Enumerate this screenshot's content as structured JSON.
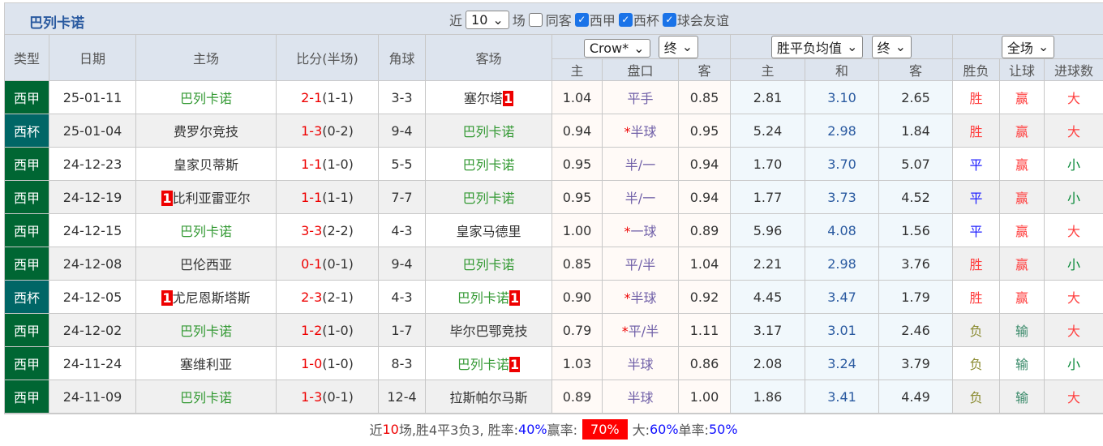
{
  "header": {
    "title": "巴列卡诺",
    "recent_label": "近",
    "recent_value": "10",
    "games_label": "场",
    "same_label": "同客",
    "filters": [
      {
        "label": "西甲",
        "checked": true
      },
      {
        "label": "西杯",
        "checked": true
      },
      {
        "label": "球会友谊",
        "checked": true
      }
    ]
  },
  "columns": {
    "type": "类型",
    "date": "日期",
    "home": "主场",
    "score": "比分(半场)",
    "corner": "角球",
    "away": "客场",
    "company": "Crow*",
    "final1": "终",
    "avg": "胜平负均值",
    "final2": "终",
    "scope": "全场",
    "h_home": "主",
    "h_line": "盘口",
    "h_away": "客",
    "e_home": "主",
    "e_draw": "和",
    "e_away": "客",
    "res": "胜负",
    "hres": "让球",
    "ou": "进球数"
  },
  "colors": {
    "league_la_liga": "#006633",
    "league_cup": "#006666",
    "accent": "#2a5aa0",
    "win": "#ff4040",
    "rate_badge": "#ff0000"
  },
  "rows": [
    {
      "type": "西甲",
      "date": "25-01-11",
      "home": "巴列卡诺",
      "home_badge": "",
      "away": "塞尔塔",
      "away_badge": "1",
      "ft": "2-1",
      "ht": "(1-1)",
      "corner": "3-3",
      "oh": "1.04",
      "line": "平手",
      "star": "",
      "oa": "0.85",
      "eh": "2.81",
      "ed": "3.10",
      "ea": "2.65",
      "res": "胜",
      "hres": "赢",
      "ou": "大"
    },
    {
      "type": "西杯",
      "date": "25-01-04",
      "home": "费罗尔竞技",
      "home_badge": "",
      "away": "巴列卡诺",
      "away_badge": "",
      "ft": "1-3",
      "ht": "(0-2)",
      "corner": "9-4",
      "oh": "0.94",
      "line": "半球",
      "star": "*",
      "oa": "0.95",
      "eh": "5.24",
      "ed": "2.98",
      "ea": "1.84",
      "res": "胜",
      "hres": "赢",
      "ou": "大"
    },
    {
      "type": "西甲",
      "date": "24-12-23",
      "home": "皇家贝蒂斯",
      "home_badge": "",
      "away": "巴列卡诺",
      "away_badge": "",
      "ft": "1-1",
      "ht": "(1-0)",
      "corner": "5-5",
      "oh": "0.95",
      "line": "半/一",
      "star": "",
      "oa": "0.94",
      "eh": "1.70",
      "ed": "3.70",
      "ea": "5.07",
      "res": "平",
      "hres": "赢",
      "ou": "小"
    },
    {
      "type": "西甲",
      "date": "24-12-19",
      "home": "比利亚雷亚尔",
      "home_badge": "1",
      "away": "巴列卡诺",
      "away_badge": "",
      "ft": "1-1",
      "ht": "(1-1)",
      "corner": "7-7",
      "oh": "0.95",
      "line": "半/一",
      "star": "",
      "oa": "0.94",
      "eh": "1.77",
      "ed": "3.73",
      "ea": "4.52",
      "res": "平",
      "hres": "赢",
      "ou": "小"
    },
    {
      "type": "西甲",
      "date": "24-12-15",
      "home": "巴列卡诺",
      "home_badge": "",
      "away": "皇家马德里",
      "away_badge": "",
      "ft": "3-3",
      "ht": "(2-2)",
      "corner": "4-3",
      "oh": "1.00",
      "line": "一球",
      "star": "*",
      "oa": "0.89",
      "eh": "5.96",
      "ed": "4.08",
      "ea": "1.56",
      "res": "平",
      "hres": "赢",
      "ou": "大"
    },
    {
      "type": "西甲",
      "date": "24-12-08",
      "home": "巴伦西亚",
      "home_badge": "",
      "away": "巴列卡诺",
      "away_badge": "",
      "ft": "0-1",
      "ht": "(0-1)",
      "corner": "9-4",
      "oh": "0.85",
      "line": "平/半",
      "star": "",
      "oa": "1.04",
      "eh": "2.21",
      "ed": "2.98",
      "ea": "3.76",
      "res": "胜",
      "hres": "赢",
      "ou": "小"
    },
    {
      "type": "西杯",
      "date": "24-12-05",
      "home": "尤尼恩斯塔斯",
      "home_badge": "1",
      "away": "巴列卡诺",
      "away_badge": "1",
      "ft": "2-3",
      "ht": "(2-1)",
      "corner": "4-3",
      "oh": "0.90",
      "line": "半球",
      "star": "*",
      "oa": "0.92",
      "eh": "4.45",
      "ed": "3.47",
      "ea": "1.79",
      "res": "胜",
      "hres": "赢",
      "ou": "大"
    },
    {
      "type": "西甲",
      "date": "24-12-02",
      "home": "巴列卡诺",
      "home_badge": "",
      "away": "毕尔巴鄂竞技",
      "away_badge": "",
      "ft": "1-2",
      "ht": "(1-0)",
      "corner": "1-7",
      "oh": "0.79",
      "line": "平/半",
      "star": "*",
      "oa": "1.11",
      "eh": "3.17",
      "ed": "3.01",
      "ea": "2.46",
      "res": "负",
      "hres": "输",
      "ou": "大"
    },
    {
      "type": "西甲",
      "date": "24-11-24",
      "home": "塞维利亚",
      "home_badge": "",
      "away": "巴列卡诺",
      "away_badge": "1",
      "ft": "1-0",
      "ht": "(1-0)",
      "corner": "8-3",
      "oh": "1.03",
      "line": "半球",
      "star": "",
      "oa": "0.86",
      "eh": "2.08",
      "ed": "3.24",
      "ea": "3.79",
      "res": "负",
      "hres": "输",
      "ou": "小"
    },
    {
      "type": "西甲",
      "date": "24-11-09",
      "home": "巴列卡诺",
      "home_badge": "",
      "away": "拉斯帕尔马斯",
      "away_badge": "",
      "ft": "1-3",
      "ht": "(0-1)",
      "corner": "12-4",
      "oh": "0.89",
      "line": "半球",
      "star": "",
      "oa": "1.00",
      "eh": "1.86",
      "ed": "3.41",
      "ea": "4.49",
      "res": "负",
      "hres": "输",
      "ou": "大"
    }
  ],
  "footer": {
    "p1": "近",
    "n": "10",
    "p2": "场,胜4平3负3, 胜率:",
    "win_rate": "40%",
    "p3": " 赢率:",
    "handicap_rate": "70%",
    "p4": "大:",
    "over_rate": "60%",
    "p5": " 单率:",
    "odd_rate": "50%"
  }
}
